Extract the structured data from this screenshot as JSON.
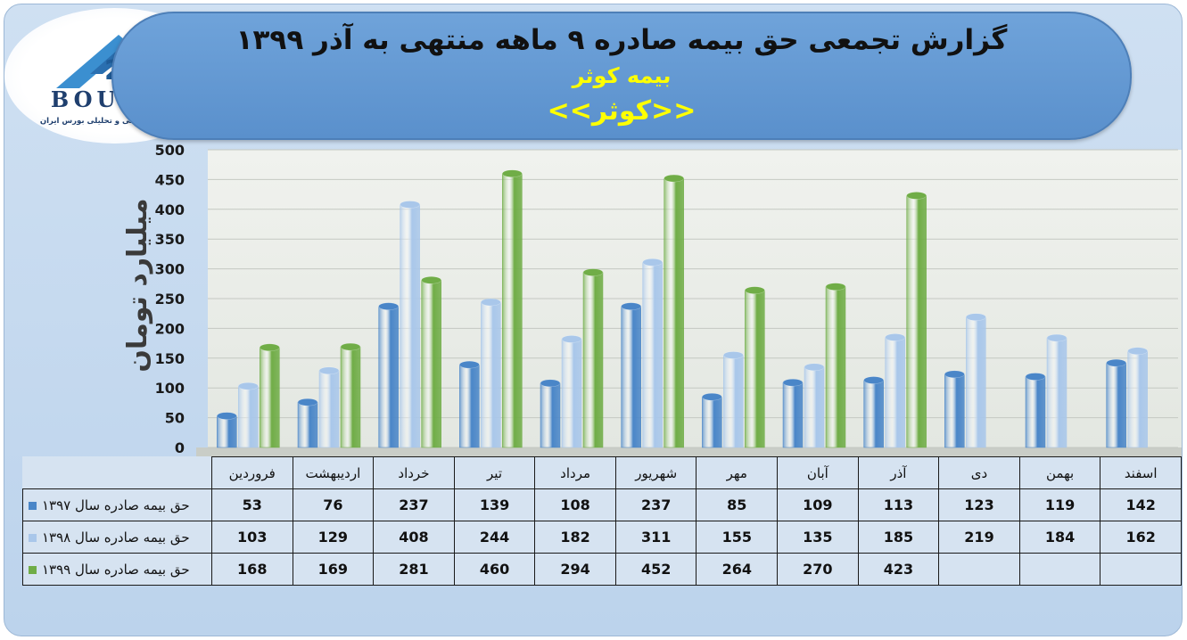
{
  "header": {
    "title": "گزارش تجمعی حق بیمه صادره ۹ ماهه منتهی به آذر ۱۳۹۹",
    "company": "بیمه کوثر",
    "short_name": "<<کوثر>>"
  },
  "logo": {
    "text": "BOURSE",
    "tagline": "پایگاه اطلاع رسانی و تحلیلی بورس ایران"
  },
  "colors": {
    "series_1397": "#4a86c8",
    "series_1398": "#a9c7ea",
    "series_1399": "#70ad47"
  },
  "chart_data": {
    "type": "bar",
    "ylabel": "میلیارد تومان",
    "ylim": [
      0,
      500
    ],
    "yticks": [
      0,
      50,
      100,
      150,
      200,
      250,
      300,
      350,
      400,
      450,
      500
    ],
    "grid": true,
    "style": "3d-cylinder",
    "categories": [
      "فروردین",
      "اردیبهشت",
      "خرداد",
      "تیر",
      "مرداد",
      "شهریور",
      "مهر",
      "آبان",
      "آذر",
      "دی",
      "بهمن",
      "اسفند"
    ],
    "series": [
      {
        "name": "حق بیمه صادره سال ۱۳۹۷",
        "color": "#4a86c8",
        "values": [
          53,
          76,
          237,
          139,
          108,
          237,
          85,
          109,
          113,
          123,
          119,
          142
        ]
      },
      {
        "name": "حق بیمه صادره سال ۱۳۹۸",
        "color": "#a9c7ea",
        "values": [
          103,
          129,
          408,
          244,
          182,
          311,
          155,
          135,
          185,
          219,
          184,
          162
        ]
      },
      {
        "name": "حق بیمه صادره سال ۱۳۹۹",
        "color": "#70ad47",
        "values": [
          168,
          169,
          281,
          460,
          294,
          452,
          264,
          270,
          423,
          null,
          null,
          null
        ]
      }
    ]
  }
}
